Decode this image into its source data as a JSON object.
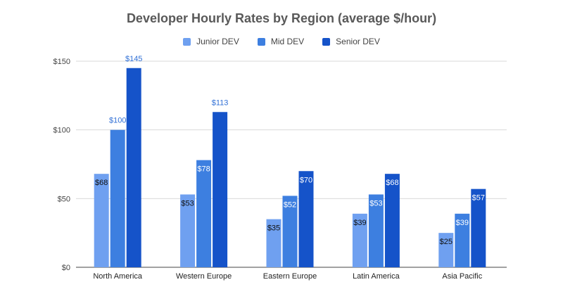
{
  "chart_data": {
    "type": "bar",
    "title": "Developer Hourly Rates by Region (average $/hour)",
    "xlabel": "",
    "ylabel": "",
    "categories": [
      "North America",
      "Western Europe",
      "Eastern Europe",
      "Latin America",
      "Asia Pacific"
    ],
    "series": [
      {
        "name": "Junior DEV",
        "values": [
          68,
          53,
          35,
          39,
          25
        ],
        "color": "#6fa0f0"
      },
      {
        "name": "Mid DEV",
        "values": [
          100,
          78,
          52,
          53,
          39
        ],
        "color": "#3d7fe0"
      },
      {
        "name": "Senior DEV",
        "values": [
          145,
          113,
          70,
          68,
          57
        ],
        "color": "#1553c9"
      }
    ],
    "ylim": [
      0,
      150
    ],
    "yticks": [
      0,
      50,
      100,
      150
    ],
    "ytick_labels": [
      "$0",
      "$50",
      "$100",
      "$150"
    ],
    "data_label_prefix": "$",
    "grid": true,
    "legend_position": "top-center"
  }
}
